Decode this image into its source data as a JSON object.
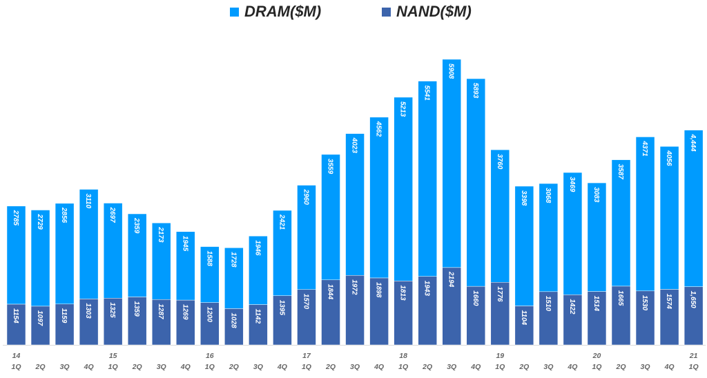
{
  "chart_data": {
    "type": "bar",
    "stacked": true,
    "title": "",
    "xlabel": "",
    "ylabel": "",
    "grid": false,
    "legend_position": "top",
    "x_labels": [
      {
        "year": "14",
        "quarter": "1Q"
      },
      {
        "year": "",
        "quarter": "2Q"
      },
      {
        "year": "",
        "quarter": "3Q"
      },
      {
        "year": "",
        "quarter": "4Q"
      },
      {
        "year": "15",
        "quarter": "1Q"
      },
      {
        "year": "",
        "quarter": "2Q"
      },
      {
        "year": "",
        "quarter": "3Q"
      },
      {
        "year": "",
        "quarter": "4Q"
      },
      {
        "year": "16",
        "quarter": "1Q"
      },
      {
        "year": "",
        "quarter": "2Q"
      },
      {
        "year": "",
        "quarter": "3Q"
      },
      {
        "year": "",
        "quarter": "4Q"
      },
      {
        "year": "17",
        "quarter": "1Q"
      },
      {
        "year": "",
        "quarter": "2Q"
      },
      {
        "year": "",
        "quarter": "3Q"
      },
      {
        "year": "",
        "quarter": "4Q"
      },
      {
        "year": "18",
        "quarter": "1Q"
      },
      {
        "year": "",
        "quarter": "2Q"
      },
      {
        "year": "",
        "quarter": "3Q"
      },
      {
        "year": "",
        "quarter": "4Q"
      },
      {
        "year": "19",
        "quarter": "1Q"
      },
      {
        "year": "",
        "quarter": "2Q"
      },
      {
        "year": "",
        "quarter": "3Q"
      },
      {
        "year": "",
        "quarter": "4Q"
      },
      {
        "year": "20",
        "quarter": "1Q"
      },
      {
        "year": "",
        "quarter": "2Q"
      },
      {
        "year": "",
        "quarter": "3Q"
      },
      {
        "year": "",
        "quarter": "4Q"
      },
      {
        "year": "21",
        "quarter": "1Q"
      }
    ],
    "series": [
      {
        "name": "NAND($M)",
        "color": "#3C64AC",
        "values": [
          1154,
          1097,
          1159,
          1303,
          1325,
          1359,
          1287,
          1269,
          1200,
          1028,
          1142,
          1395,
          1570,
          1844,
          1972,
          1898,
          1813,
          1943,
          2194,
          1660,
          1776,
          1104,
          1510,
          1422,
          1514,
          1665,
          1530,
          1574,
          1650
        ],
        "labels": [
          "1154",
          "1097",
          "1159",
          "1303",
          "1325",
          "1359",
          "1287",
          "1269",
          "1200",
          "1028",
          "1142",
          "1395",
          "1570",
          "1844",
          "1972",
          "1898",
          "1813",
          "1943",
          "2194",
          "1660",
          "1776",
          "1104",
          "1510",
          "1422",
          "1514",
          "1665",
          "1530",
          "1574",
          "1,650"
        ]
      },
      {
        "name": "DRAM($M)",
        "color": "#009BFE",
        "values": [
          2785,
          2729,
          2856,
          3110,
          2697,
          2359,
          2173,
          1945,
          1588,
          1728,
          1946,
          2421,
          2960,
          3559,
          4023,
          4562,
          5213,
          5541,
          5908,
          5893,
          3760,
          3398,
          3068,
          3469,
          3083,
          3587,
          4371,
          4056,
          4444
        ],
        "labels": [
          "2785",
          "2729",
          "2856",
          "3110",
          "2697",
          "2359",
          "2173",
          "1945",
          "1588",
          "1728",
          "1946",
          "2421",
          "2960",
          "3559",
          "4023",
          "4562",
          "5213",
          "5541",
          "5908",
          "5893",
          "3760",
          "3398",
          "3068",
          "3469",
          "3083",
          "3587",
          "4371",
          "4056",
          "4,444"
        ]
      }
    ]
  }
}
